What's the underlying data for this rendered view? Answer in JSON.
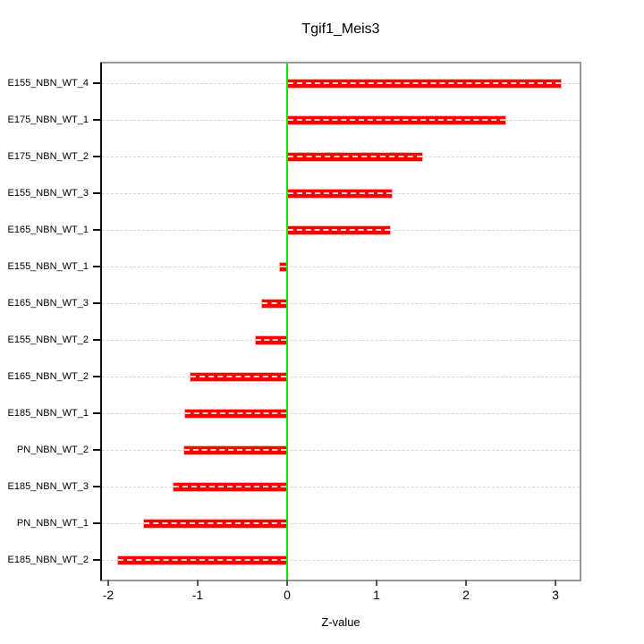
{
  "title": "Tgif1_Meis3",
  "chart_data": {
    "type": "bar",
    "orientation": "horizontal",
    "title": "Tgif1_Meis3",
    "xlabel": "Z-value",
    "categories": [
      "E155_NBN_WT_4",
      "E175_NBN_WT_1",
      "E175_NBN_WT_2",
      "E155_NBN_WT_3",
      "E165_NBN_WT_1",
      "E155_NBN_WT_1",
      "E165_NBN_WT_3",
      "E155_NBN_WT_2",
      "E165_NBN_WT_2",
      "E185_NBN_WT_1",
      "PN_NBN_WT_2",
      "E185_NBN_WT_3",
      "PN_NBN_WT_1",
      "E185_NBN_WT_2"
    ],
    "values": [
      3.07,
      2.45,
      1.52,
      1.18,
      1.16,
      -0.09,
      -0.29,
      -0.36,
      -1.09,
      -1.15,
      -1.16,
      -1.28,
      -1.61,
      -1.9
    ],
    "xlim": [
      -2.07,
      3.27
    ],
    "x_ticks": [
      -2,
      -1,
      0,
      1,
      2,
      3
    ],
    "grid": true,
    "legend": false,
    "zero_reference_line": 0,
    "colors": {
      "bar_fill": "#ff0000",
      "bar_edge": "#ffb3b3",
      "zero_line": "#00ee00",
      "grid_line": "#d6d6d6",
      "frame": "#989898",
      "axis_line": "#111111",
      "text": "#000000",
      "background": "#ffffff"
    }
  }
}
